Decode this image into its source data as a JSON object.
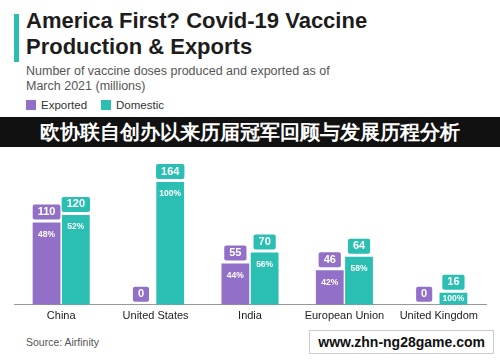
{
  "chart_data": {
    "type": "bar",
    "title": "America First? Covid-19 Vaccine Production & Exports",
    "subtitle": "Number of vaccine doses produced and exported as of March 2021 (millions)",
    "categories": [
      "China",
      "United States",
      "India",
      "European Union",
      "United Kingdom"
    ],
    "series": [
      {
        "name": "Exported",
        "color": "#9370c8",
        "values": [
          110,
          0,
          55,
          46,
          0
        ],
        "share_labels": [
          "48%",
          null,
          "44%",
          "42%",
          null
        ]
      },
      {
        "name": "Domestic",
        "color": "#2bbfb3",
        "values": [
          120,
          164,
          70,
          64,
          16
        ],
        "share_labels": [
          "52%",
          "100%",
          "56%",
          "58%",
          "100%"
        ]
      }
    ],
    "ylim": [
      0,
      180
    ],
    "grid": false,
    "legend": "top left",
    "data_labels": true,
    "tick_labels": "x",
    "source": "Source: Airfinity",
    "banner": "欧协联自创办以来历届冠军回顾与发展历程分析",
    "watermark": "www.zhn-ng28game.com"
  }
}
